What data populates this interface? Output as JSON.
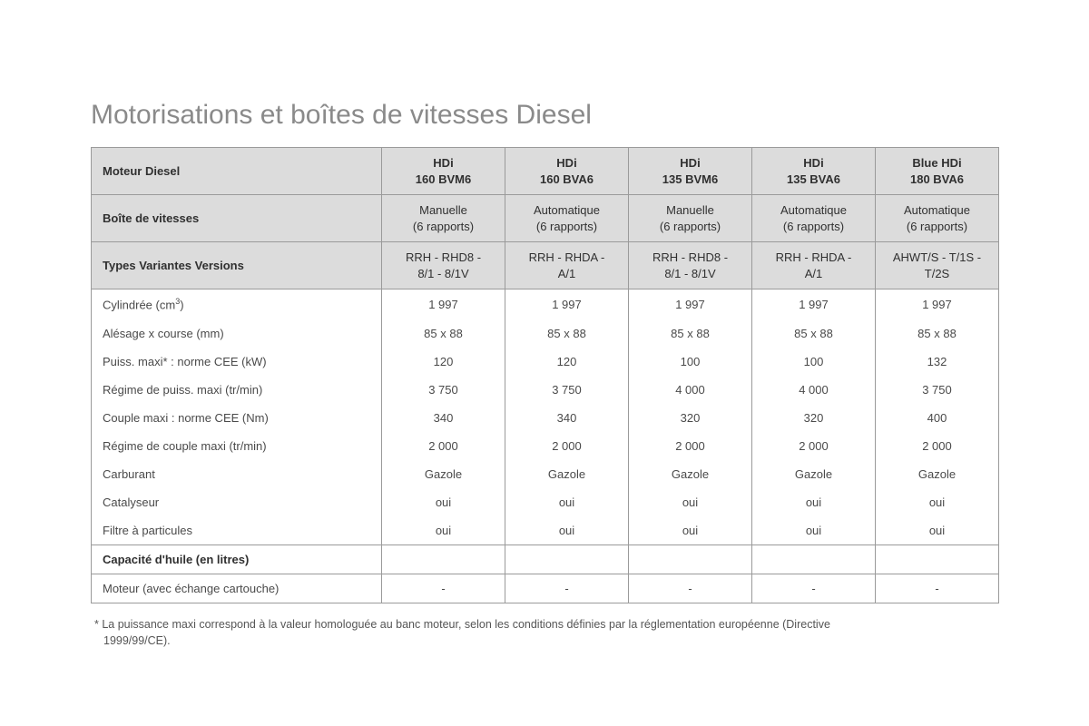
{
  "title": "Motorisations et boîtes de vitesses Diesel",
  "columns": [
    {
      "engine_l1": "HDi",
      "engine_l2": "160 BVM6",
      "gearbox_l1": "Manuelle",
      "gearbox_l2": "(6 rapports)",
      "tvv_l1": "RRH - RHD8 -",
      "tvv_l2": "8/1 - 8/1V"
    },
    {
      "engine_l1": "HDi",
      "engine_l2": "160 BVA6",
      "gearbox_l1": "Automatique",
      "gearbox_l2": "(6 rapports)",
      "tvv_l1": "RRH - RHDA -",
      "tvv_l2": "A/1"
    },
    {
      "engine_l1": "HDi",
      "engine_l2": "135 BVM6",
      "gearbox_l1": "Manuelle",
      "gearbox_l2": "(6 rapports)",
      "tvv_l1": "RRH - RHD8 -",
      "tvv_l2": "8/1 - 8/1V"
    },
    {
      "engine_l1": "HDi",
      "engine_l2": "135 BVA6",
      "gearbox_l1": "Automatique",
      "gearbox_l2": "(6 rapports)",
      "tvv_l1": "RRH - RHDA -",
      "tvv_l2": "A/1"
    },
    {
      "engine_l1": "Blue HDi",
      "engine_l2": "180 BVA6",
      "gearbox_l1": "Automatique",
      "gearbox_l2": "(6 rapports)",
      "tvv_l1": "AHWT/S - T/1S -",
      "tvv_l2": "T/2S"
    }
  ],
  "header_labels": {
    "engine": "Moteur Diesel",
    "gearbox": "Boîte de vitesses",
    "tvv": "Types Variantes Versions"
  },
  "rows": [
    {
      "label_html": "Cylindrée (cm<span class=\"sup\">3</span>)",
      "values": [
        "1 997",
        "1 997",
        "1 997",
        "1 997",
        "1 997"
      ]
    },
    {
      "label_html": "Alésage x course (mm)",
      "values": [
        "85 x 88",
        "85 x 88",
        "85 x 88",
        "85 x 88",
        "85 x 88"
      ]
    },
    {
      "label_html": "Puiss. maxi* : norme CEE (kW)",
      "values": [
        "120",
        "120",
        "100",
        "100",
        "132"
      ]
    },
    {
      "label_html": "Régime de puiss. maxi (tr/min)",
      "values": [
        "3 750",
        "3 750",
        "4 000",
        "4 000",
        "3 750"
      ]
    },
    {
      "label_html": "Couple maxi : norme CEE (Nm)",
      "values": [
        "340",
        "340",
        "320",
        "320",
        "400"
      ]
    },
    {
      "label_html": "Régime de couple maxi (tr/min)",
      "values": [
        "2 000",
        "2 000",
        "2 000",
        "2 000",
        "2 000"
      ]
    },
    {
      "label_html": "Carburant",
      "values": [
        "Gazole",
        "Gazole",
        "Gazole",
        "Gazole",
        "Gazole"
      ]
    },
    {
      "label_html": "Catalyseur",
      "values": [
        "oui",
        "oui",
        "oui",
        "oui",
        "oui"
      ]
    },
    {
      "label_html": "Filtre à particules",
      "values": [
        "oui",
        "oui",
        "oui",
        "oui",
        "oui"
      ]
    }
  ],
  "section_label": "Capacité d'huile (en litres)",
  "oil_row": {
    "label": "Moteur (avec échange cartouche)",
    "values": [
      "-",
      "-",
      "-",
      "-",
      "-"
    ]
  },
  "footnote_l1": "* La puissance maxi correspond à la valeur homologuée au banc moteur, selon les conditions définies par la réglementation européenne (Directive",
  "footnote_l2": "1999/99/CE)."
}
